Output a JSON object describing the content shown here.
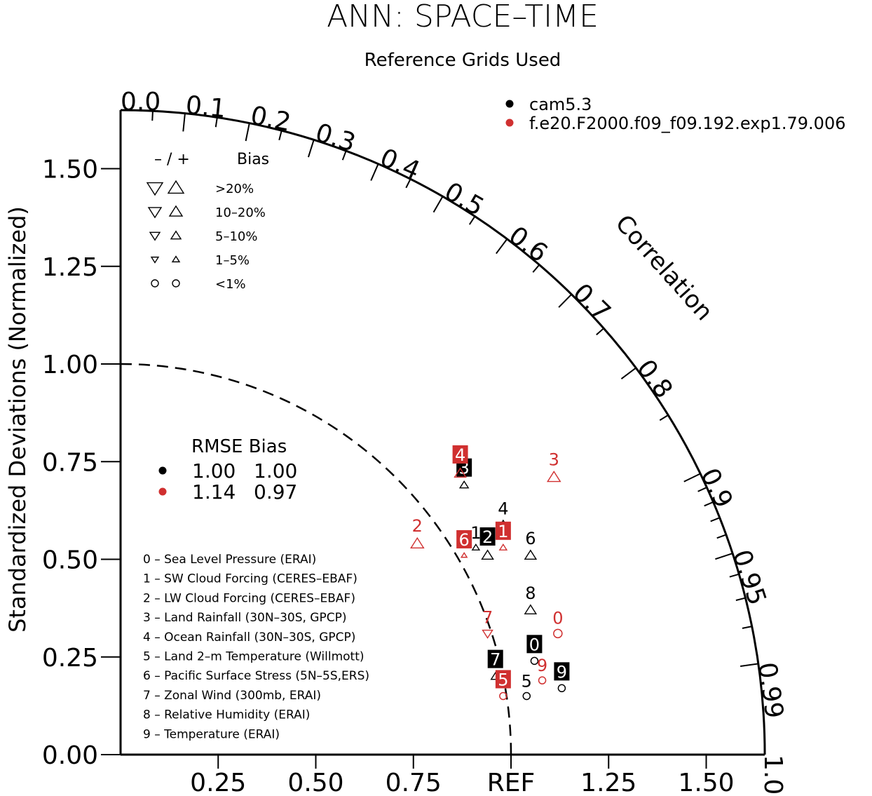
{
  "chart_data": {
    "type": "scatter",
    "title": "ANN: SPACE–TIME",
    "subtitle": "Reference Grids Used",
    "ylabel": "Standardized Deviations (Normalized)",
    "arc_label": "Correlation",
    "y_ticks": [
      "0.00",
      "0.25",
      "0.50",
      "0.75",
      "1.00",
      "1.25",
      "1.50"
    ],
    "x_ticks": [
      "0.25",
      "0.50",
      "0.75",
      "REF",
      "1.25",
      "1.50"
    ],
    "corr_ticks": [
      "0.0",
      "0.1",
      "0.2",
      "0.3",
      "0.4",
      "0.5",
      "0.6",
      "0.7",
      "0.8",
      "0.9",
      "0.95",
      "0.99",
      "1.0"
    ],
    "xlim": [
      0,
      1.65
    ],
    "ylim": [
      0,
      1.65
    ],
    "ref_circle_radius": 1.0,
    "series": [
      {
        "name": "cam5.3",
        "color": "#000000"
      },
      {
        "name": "f.e20.F2000.f09_f09.192.exp1.79.006",
        "color": "#d03030"
      }
    ],
    "rmse_table": {
      "header": "RMSE Bias",
      "rows": [
        {
          "color": "#000000",
          "rmse": "1.00",
          "bias": "1.00"
        },
        {
          "color": "#d03030",
          "rmse": "1.14",
          "bias": "0.97"
        }
      ]
    },
    "bias_legend": {
      "header_sign": "– / +",
      "header_bias": "Bias",
      "rows": [
        {
          "label": ">20%",
          "shape": "triangle",
          "size": 11
        },
        {
          "label": "10–20%",
          "shape": "triangle",
          "size": 9
        },
        {
          "label": "5–10%",
          "shape": "triangle",
          "size": 7
        },
        {
          "label": "1–5%",
          "shape": "triangle",
          "size": 5
        },
        {
          "label": "<1%",
          "shape": "circle",
          "size": 5
        }
      ]
    },
    "variables": [
      "0 – Sea Level Pressure (ERAI)",
      "1 – SW Cloud Forcing (CERES–EBAF)",
      "2 – LW Cloud Forcing (CERES–EBAF)",
      "3 – Land Rainfall (30N–30S, GPCP)",
      "4 – Ocean Rainfall (30N–30S, GPCP)",
      "5 – Land 2–m Temperature (Willmott)",
      "6 – Pacific Surface Stress (5N–5S,ERS)",
      "7 – Zonal Wind (300mb, ERAI)",
      "8 – Relative Humidity (ERAI)",
      "9 – Temperature (ERAI)"
    ],
    "points": [
      {
        "series": 0,
        "label": "0",
        "x": 1.06,
        "y": 0.24,
        "marker": "circle",
        "size": 5,
        "boxed": true
      },
      {
        "series": 0,
        "label": "1",
        "x": 0.91,
        "y": 0.53,
        "marker": "up",
        "size": 5,
        "boxed": false
      },
      {
        "series": 0,
        "label": "2",
        "x": 0.94,
        "y": 0.51,
        "marker": "up",
        "size": 8,
        "boxed": true
      },
      {
        "series": 0,
        "label": "3",
        "x": 0.88,
        "y": 0.69,
        "marker": "up",
        "size": 6,
        "boxed": true
      },
      {
        "series": 0,
        "label": "4",
        "x": 0.98,
        "y": 0.59,
        "marker": "up",
        "size": 6,
        "boxed": false
      },
      {
        "series": 0,
        "label": "5",
        "x": 1.04,
        "y": 0.15,
        "marker": "circle",
        "size": 5,
        "boxed": false
      },
      {
        "series": 0,
        "label": "6",
        "x": 1.05,
        "y": 0.51,
        "marker": "up",
        "size": 8,
        "boxed": false
      },
      {
        "series": 0,
        "label": "7",
        "x": 0.96,
        "y": 0.2,
        "marker": "up",
        "size": 6,
        "boxed": true
      },
      {
        "series": 0,
        "label": "8",
        "x": 1.05,
        "y": 0.37,
        "marker": "up",
        "size": 8,
        "boxed": false
      },
      {
        "series": 0,
        "label": "9",
        "x": 1.13,
        "y": 0.17,
        "marker": "circle",
        "size": 5,
        "boxed": true
      },
      {
        "series": 1,
        "label": "0",
        "x": 1.12,
        "y": 0.31,
        "marker": "circle",
        "size": 6,
        "boxed": false
      },
      {
        "series": 1,
        "label": "1",
        "x": 0.98,
        "y": 0.53,
        "marker": "up",
        "size": 5,
        "boxed": true
      },
      {
        "series": 1,
        "label": "2",
        "x": 0.76,
        "y": 0.54,
        "marker": "up",
        "size": 9,
        "boxed": false
      },
      {
        "series": 1,
        "label": "3",
        "x": 1.11,
        "y": 0.71,
        "marker": "up",
        "size": 9,
        "boxed": false
      },
      {
        "series": 1,
        "label": "4",
        "x": 0.87,
        "y": 0.72,
        "marker": "up",
        "size": 8,
        "boxed": true
      },
      {
        "series": 1,
        "label": "5",
        "x": 0.98,
        "y": 0.15,
        "marker": "circle",
        "size": 5,
        "boxed": true
      },
      {
        "series": 1,
        "label": "6",
        "x": 0.88,
        "y": 0.51,
        "marker": "up",
        "size": 4,
        "boxed": true
      },
      {
        "series": 1,
        "label": "7",
        "x": 0.94,
        "y": 0.31,
        "marker": "down",
        "size": 7,
        "boxed": false
      },
      {
        "series": 1,
        "label": "9",
        "x": 1.08,
        "y": 0.19,
        "marker": "circle",
        "size": 5,
        "boxed": false
      }
    ]
  }
}
